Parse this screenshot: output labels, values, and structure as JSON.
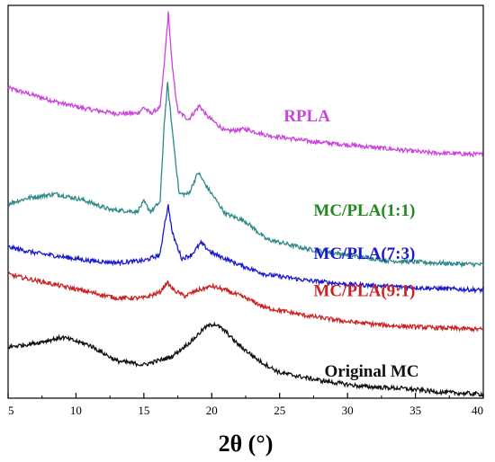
{
  "chart_data": {
    "type": "line",
    "title": "",
    "xlabel": "2θ (°)",
    "ylabel": "",
    "xlim": [
      5,
      40
    ],
    "ylim": [
      0,
      100
    ],
    "x_ticks": [
      5,
      10,
      15,
      20,
      25,
      30,
      35,
      40
    ],
    "y_ticks_shown": false,
    "grid": false,
    "legend": "labels beside curves",
    "series": [
      {
        "name": "RPLA",
        "color": "#cc44dd",
        "points": [
          [
            5,
            79.0
          ],
          [
            7,
            77.0
          ],
          [
            9,
            75.0
          ],
          [
            11,
            73.5
          ],
          [
            13,
            72.5
          ],
          [
            14.5,
            72.5
          ],
          [
            15,
            74.0
          ],
          [
            15.5,
            72.5
          ],
          [
            16.2,
            74.0
          ],
          [
            16.5,
            85.0
          ],
          [
            16.8,
            98.0
          ],
          [
            17.1,
            84.0
          ],
          [
            17.5,
            73.0
          ],
          [
            18.3,
            71.0
          ],
          [
            19.1,
            74.5
          ],
          [
            19.6,
            72.0
          ],
          [
            21,
            68.0
          ],
          [
            22.5,
            68.5
          ],
          [
            24,
            67.0
          ],
          [
            27,
            65.5
          ],
          [
            30,
            64.5
          ],
          [
            33,
            63.5
          ],
          [
            36,
            62.5
          ],
          [
            40,
            62.0
          ]
        ]
      },
      {
        "name": "MC/PLA(1:1)",
        "color": "#2f8a8a",
        "label_color": "#228822",
        "points": [
          [
            5,
            49.5
          ],
          [
            6.5,
            51.0
          ],
          [
            8.5,
            52.0
          ],
          [
            10.5,
            50.5
          ],
          [
            12.5,
            48.0
          ],
          [
            14.5,
            47.5
          ],
          [
            15,
            50.0
          ],
          [
            15.5,
            47.5
          ],
          [
            16.2,
            50.0
          ],
          [
            16.5,
            70.0
          ],
          [
            16.75,
            80.0
          ],
          [
            17.1,
            68.0
          ],
          [
            17.6,
            52.0
          ],
          [
            18.3,
            52.0
          ],
          [
            19.0,
            57.5
          ],
          [
            19.6,
            54.0
          ],
          [
            21,
            47.0
          ],
          [
            22.5,
            45.0
          ],
          [
            24,
            40.5
          ],
          [
            27,
            38.0
          ],
          [
            30,
            36.5
          ],
          [
            33,
            35.0
          ],
          [
            36,
            34.5
          ],
          [
            40,
            34.0
          ]
        ]
      },
      {
        "name": "MC/PLA(7:3)",
        "color": "#1a1acc",
        "points": [
          [
            5,
            38.5
          ],
          [
            7,
            37.0
          ],
          [
            9,
            36.0
          ],
          [
            11,
            35.0
          ],
          [
            13,
            34.5
          ],
          [
            15,
            35.0
          ],
          [
            16.2,
            36.5
          ],
          [
            16.5,
            44.0
          ],
          [
            16.8,
            49.0
          ],
          [
            17.1,
            42.0
          ],
          [
            17.8,
            35.5
          ],
          [
            18.5,
            36.5
          ],
          [
            19.2,
            39.5
          ],
          [
            20,
            37.0
          ],
          [
            22,
            34.0
          ],
          [
            24,
            31.5
          ],
          [
            27,
            30.0
          ],
          [
            30,
            29.0
          ],
          [
            33,
            28.5
          ],
          [
            36,
            28.0
          ],
          [
            40,
            27.5
          ]
        ]
      },
      {
        "name": "MC/PLA(9:1)",
        "color": "#cc2222",
        "points": [
          [
            5,
            31.5
          ],
          [
            7,
            30.0
          ],
          [
            9,
            28.5
          ],
          [
            11,
            27.0
          ],
          [
            13,
            25.5
          ],
          [
            15,
            25.5
          ],
          [
            16.2,
            27.0
          ],
          [
            16.7,
            29.5
          ],
          [
            17.2,
            27.5
          ],
          [
            18,
            26.0
          ],
          [
            19,
            27.5
          ],
          [
            20,
            28.5
          ],
          [
            21,
            27.5
          ],
          [
            22.5,
            25.5
          ],
          [
            24,
            23.0
          ],
          [
            27,
            21.0
          ],
          [
            30,
            19.5
          ],
          [
            33,
            18.5
          ],
          [
            36,
            18.0
          ],
          [
            40,
            17.5
          ]
        ]
      },
      {
        "name": "Original MC",
        "color": "#111111",
        "points": [
          [
            5,
            13.0
          ],
          [
            7,
            14.0
          ],
          [
            9,
            15.5
          ],
          [
            11,
            13.5
          ],
          [
            13,
            9.5
          ],
          [
            15,
            8.5
          ],
          [
            17,
            10.5
          ],
          [
            18.5,
            14.5
          ],
          [
            19.5,
            18.0
          ],
          [
            20.2,
            19.0
          ],
          [
            21,
            17.0
          ],
          [
            22,
            13.5
          ],
          [
            23.5,
            9.5
          ],
          [
            25,
            6.5
          ],
          [
            28,
            4.5
          ],
          [
            31,
            3.0
          ],
          [
            34,
            2.5
          ],
          [
            37,
            1.5
          ],
          [
            40,
            1.0
          ]
        ]
      }
    ]
  }
}
